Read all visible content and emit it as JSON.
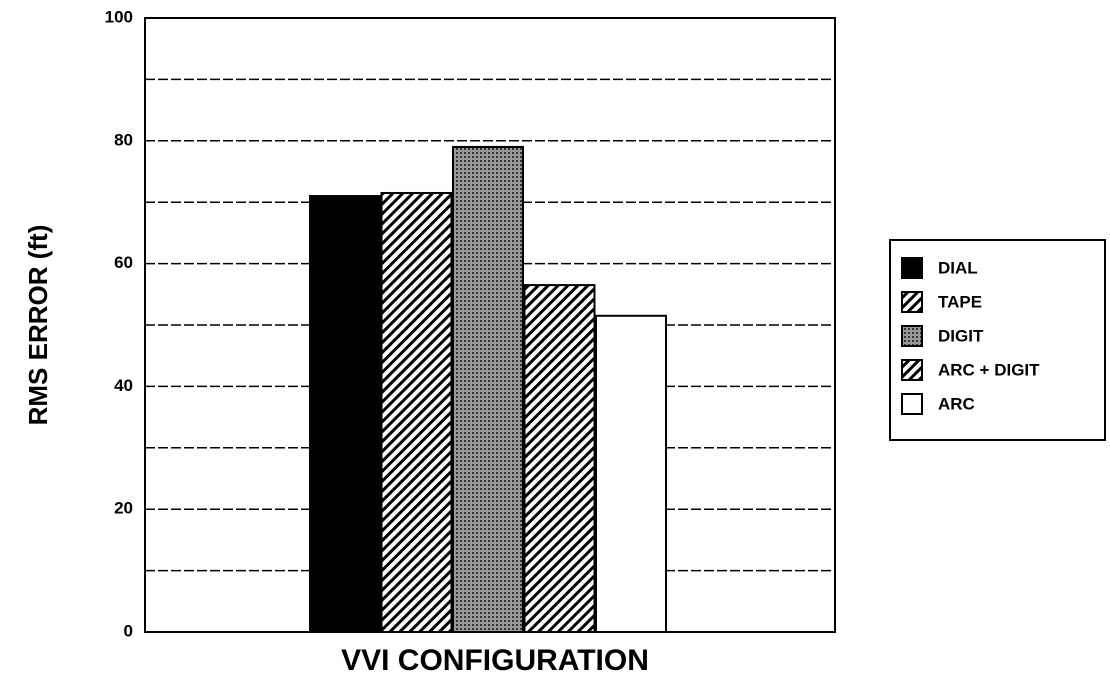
{
  "chart_data": {
    "type": "bar",
    "x_label": "VVI CONFIGURATION",
    "y_label": "RMS ERROR (ft)",
    "series": [
      {
        "name": "DIAL",
        "color": "#000000",
        "pattern": "solid",
        "values": [
          71
        ]
      },
      {
        "name": "TAPE",
        "color": "#000000",
        "pattern": "hatch",
        "values": [
          71.5
        ]
      },
      {
        "name": "DIGIT",
        "color": "#555555",
        "pattern": "dots",
        "values": [
          79
        ]
      },
      {
        "name": "ARC + DIGIT",
        "color": "#000000",
        "pattern": "hatch",
        "values": [
          56.5
        ]
      },
      {
        "name": "ARC",
        "color": "#ffffff",
        "pattern": "solid",
        "values": [
          51.5
        ]
      }
    ],
    "ylim": [
      0,
      100
    ],
    "yticks": [
      0,
      20,
      40,
      60,
      80,
      100
    ],
    "minor_grid": [
      10,
      30,
      50,
      70,
      90
    ],
    "grid": true,
    "legend": "right"
  }
}
